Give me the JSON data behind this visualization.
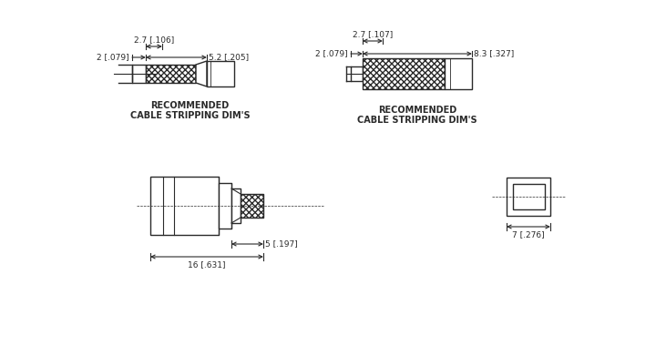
{
  "bg_color": "#ffffff",
  "line_color": "#2a2a2a",
  "top_left": {
    "label1": "RECOMMENDED",
    "label2": "CABLE STRIPPING DIM'S",
    "dim_2": "2 [.079]",
    "dim_27": "2.7 [.106]",
    "dim_52": "5.2 [.205]"
  },
  "top_right": {
    "label1": "RECOMMENDED",
    "label2": "CABLE STRIPPING DIM'S",
    "dim_2": "2 [.079]",
    "dim_27": "2.7 [.107]",
    "dim_83": "8.3 [.327]"
  },
  "bottom_left": {
    "dim_5": "5 [.197]",
    "dim_16": "16 [.631]"
  },
  "bottom_right": {
    "dim_7": "7 [.276]"
  }
}
